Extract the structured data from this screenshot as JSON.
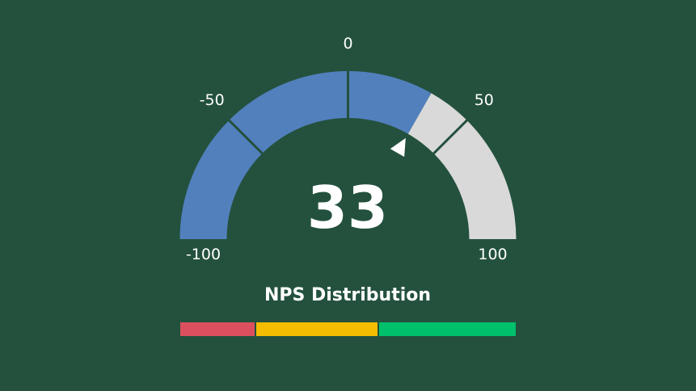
{
  "chart_data": {
    "type": "gauge",
    "title": "NPS Distribution",
    "value": 33,
    "value_label": "33",
    "min": -100,
    "max": 100,
    "tick_labels": [
      {
        "value": -100,
        "label": "-100"
      },
      {
        "value": -50,
        "label": "-50"
      },
      {
        "value": 0,
        "label": "0"
      },
      {
        "value": 50,
        "label": "50"
      },
      {
        "value": 100,
        "label": "100"
      }
    ],
    "filled_color": "#5280bd",
    "unfilled_color": "#d9d9d9",
    "pointer_color": "#ffffff",
    "distribution": [
      {
        "color": "#dc4f5f",
        "from": -100,
        "to": -55
      },
      {
        "color": "#f5bd00",
        "from": -55,
        "to": 18
      },
      {
        "color": "#00c06b",
        "from": 18,
        "to": 100
      }
    ]
  },
  "colors": {
    "background": "#23513d",
    "divider": "#23513d"
  }
}
